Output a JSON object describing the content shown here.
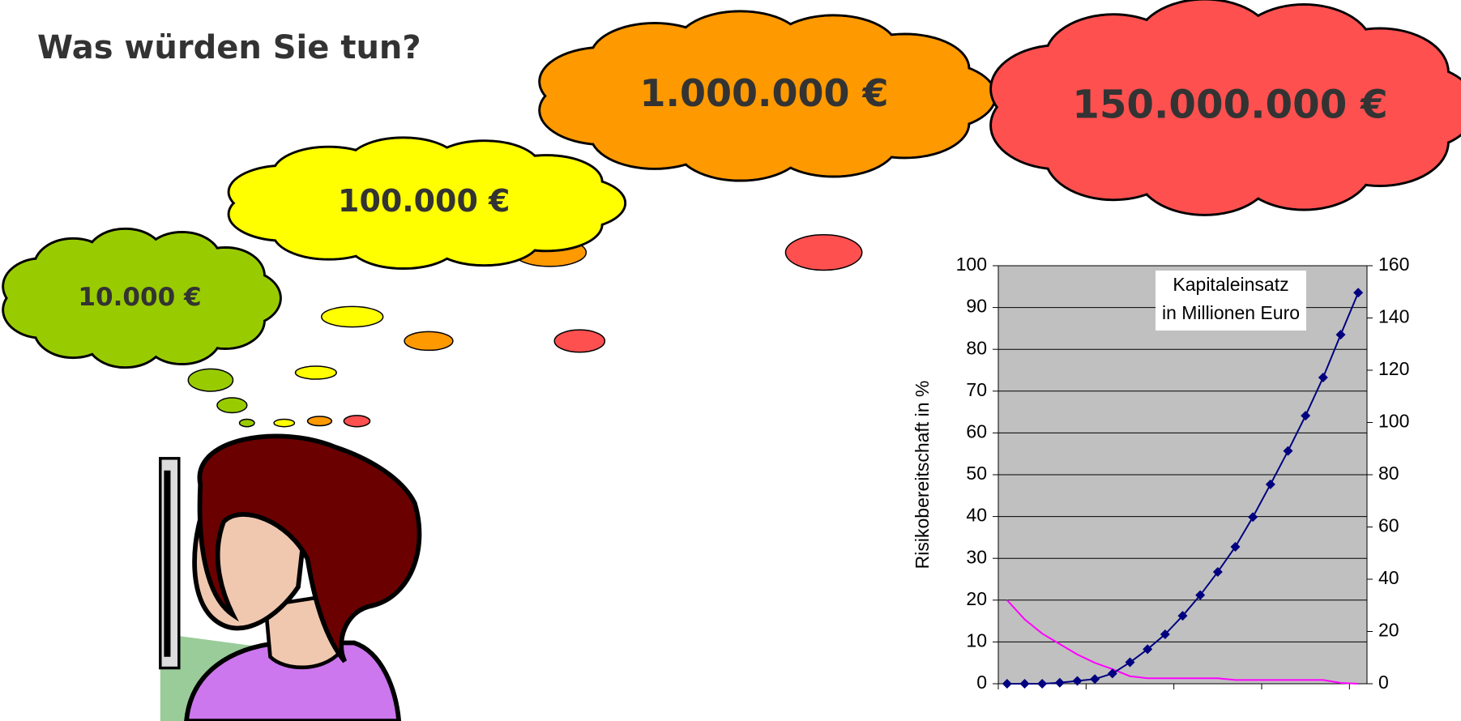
{
  "title": "Was würden Sie tun?",
  "clouds": [
    {
      "label": "10.000 €",
      "color": "#99cc00"
    },
    {
      "label": "100.000 €",
      "color": "#ffff00"
    },
    {
      "label": "1.000.000 €",
      "color": "#ff9900"
    },
    {
      "label": "150.000.000 €",
      "color": "#ff5050"
    }
  ],
  "chart_data": {
    "type": "line",
    "y_label": "Risikobereitschaft in %",
    "annotation": [
      "Kapitaleinsatz",
      "in Millionen Euro"
    ],
    "categories": [
      null,
      null,
      null,
      null,
      null,
      null,
      null,
      null,
      null,
      null,
      null,
      null,
      null,
      null,
      null,
      null,
      null,
      null,
      null,
      null,
      null
    ],
    "x_tick_every": 5,
    "ylim": [
      0,
      100
    ],
    "yticks": [
      0,
      10,
      20,
      30,
      40,
      50,
      60,
      70,
      80,
      90,
      100
    ],
    "y2lim": [
      0,
      160
    ],
    "y2ticks": [
      0,
      20,
      40,
      60,
      80,
      100,
      120,
      140,
      160
    ],
    "grid": true,
    "background": "#c0c0c0",
    "series": [
      {
        "color": "#ff00ff",
        "values": [
          20,
          15.4,
          12,
          9.5,
          7,
          5,
          3.5,
          1.8,
          1.3,
          1.3,
          1.3,
          1.3,
          1.3,
          0.9,
          0.9,
          0.9,
          0.9,
          0.9,
          0.9,
          0.2,
          0
        ]
      },
      {
        "color": "#000080",
        "axis": "y2",
        "marker": "diamond",
        "values": [
          0,
          0,
          0,
          0.4,
          1.1,
          1.8,
          3.9,
          8.2,
          13.2,
          18.9,
          26,
          33.9,
          42.8,
          52.4,
          63.8,
          76.3,
          89.1,
          102.6,
          117.2,
          133.6,
          149.7
        ]
      }
    ]
  }
}
